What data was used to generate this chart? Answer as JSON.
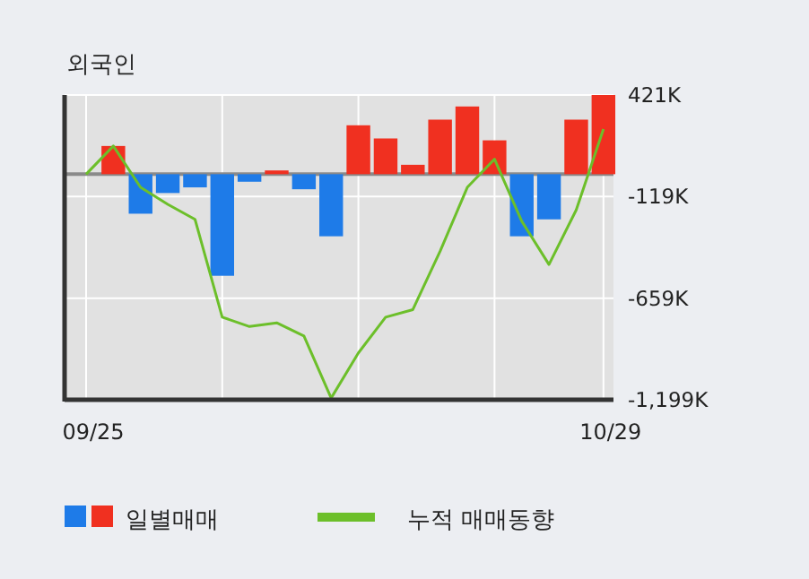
{
  "chart_data": {
    "type": "bar",
    "title": "외국인",
    "categories": [
      "09/25",
      null,
      null,
      null,
      null,
      null,
      null,
      null,
      null,
      null,
      null,
      null,
      null,
      null,
      null,
      null,
      null,
      null,
      null,
      "10/29"
    ],
    "series": [
      {
        "name": "일별매매",
        "values": [
          null,
          150,
          -210,
          -100,
          -70,
          -540,
          -40,
          20,
          -80,
          -330,
          260,
          190,
          50,
          290,
          360,
          180,
          -330,
          -240,
          290,
          421
        ],
        "colors": [
          "#1e7be8",
          "#f03020",
          "#1e7be8",
          "#1e7be8",
          "#1e7be8",
          "#1e7be8",
          "#1e7be8",
          "#f03020",
          "#1e7be8",
          "#1e7be8",
          "#f03020",
          "#f03020",
          "#f03020",
          "#f03020",
          "#f03020",
          "#f03020",
          "#1e7be8",
          "#1e7be8",
          "#f03020",
          "#f03020"
        ]
      },
      {
        "type": "line",
        "name": "누적 매매동향",
        "color": "#6cbf2a",
        "values": [
          0,
          150,
          -70,
          -160,
          -240,
          -760,
          -810,
          -790,
          -860,
          -1190,
          -950,
          -760,
          -720,
          -410,
          -70,
          80,
          -250,
          -480,
          -190,
          240
        ]
      }
    ],
    "ylim": [
      -1199,
      421
    ],
    "yticks": [
      {
        "value": 421,
        "label": "421K"
      },
      {
        "value": -119,
        "label": "-119K"
      },
      {
        "value": -659,
        "label": "-659K"
      },
      {
        "value": -1199,
        "label": "-1,199K"
      }
    ],
    "ref_lines": [
      {
        "axis": "y",
        "value": 0,
        "color": "#8a8a8a"
      }
    ],
    "grid": true,
    "legend": "bottom"
  }
}
